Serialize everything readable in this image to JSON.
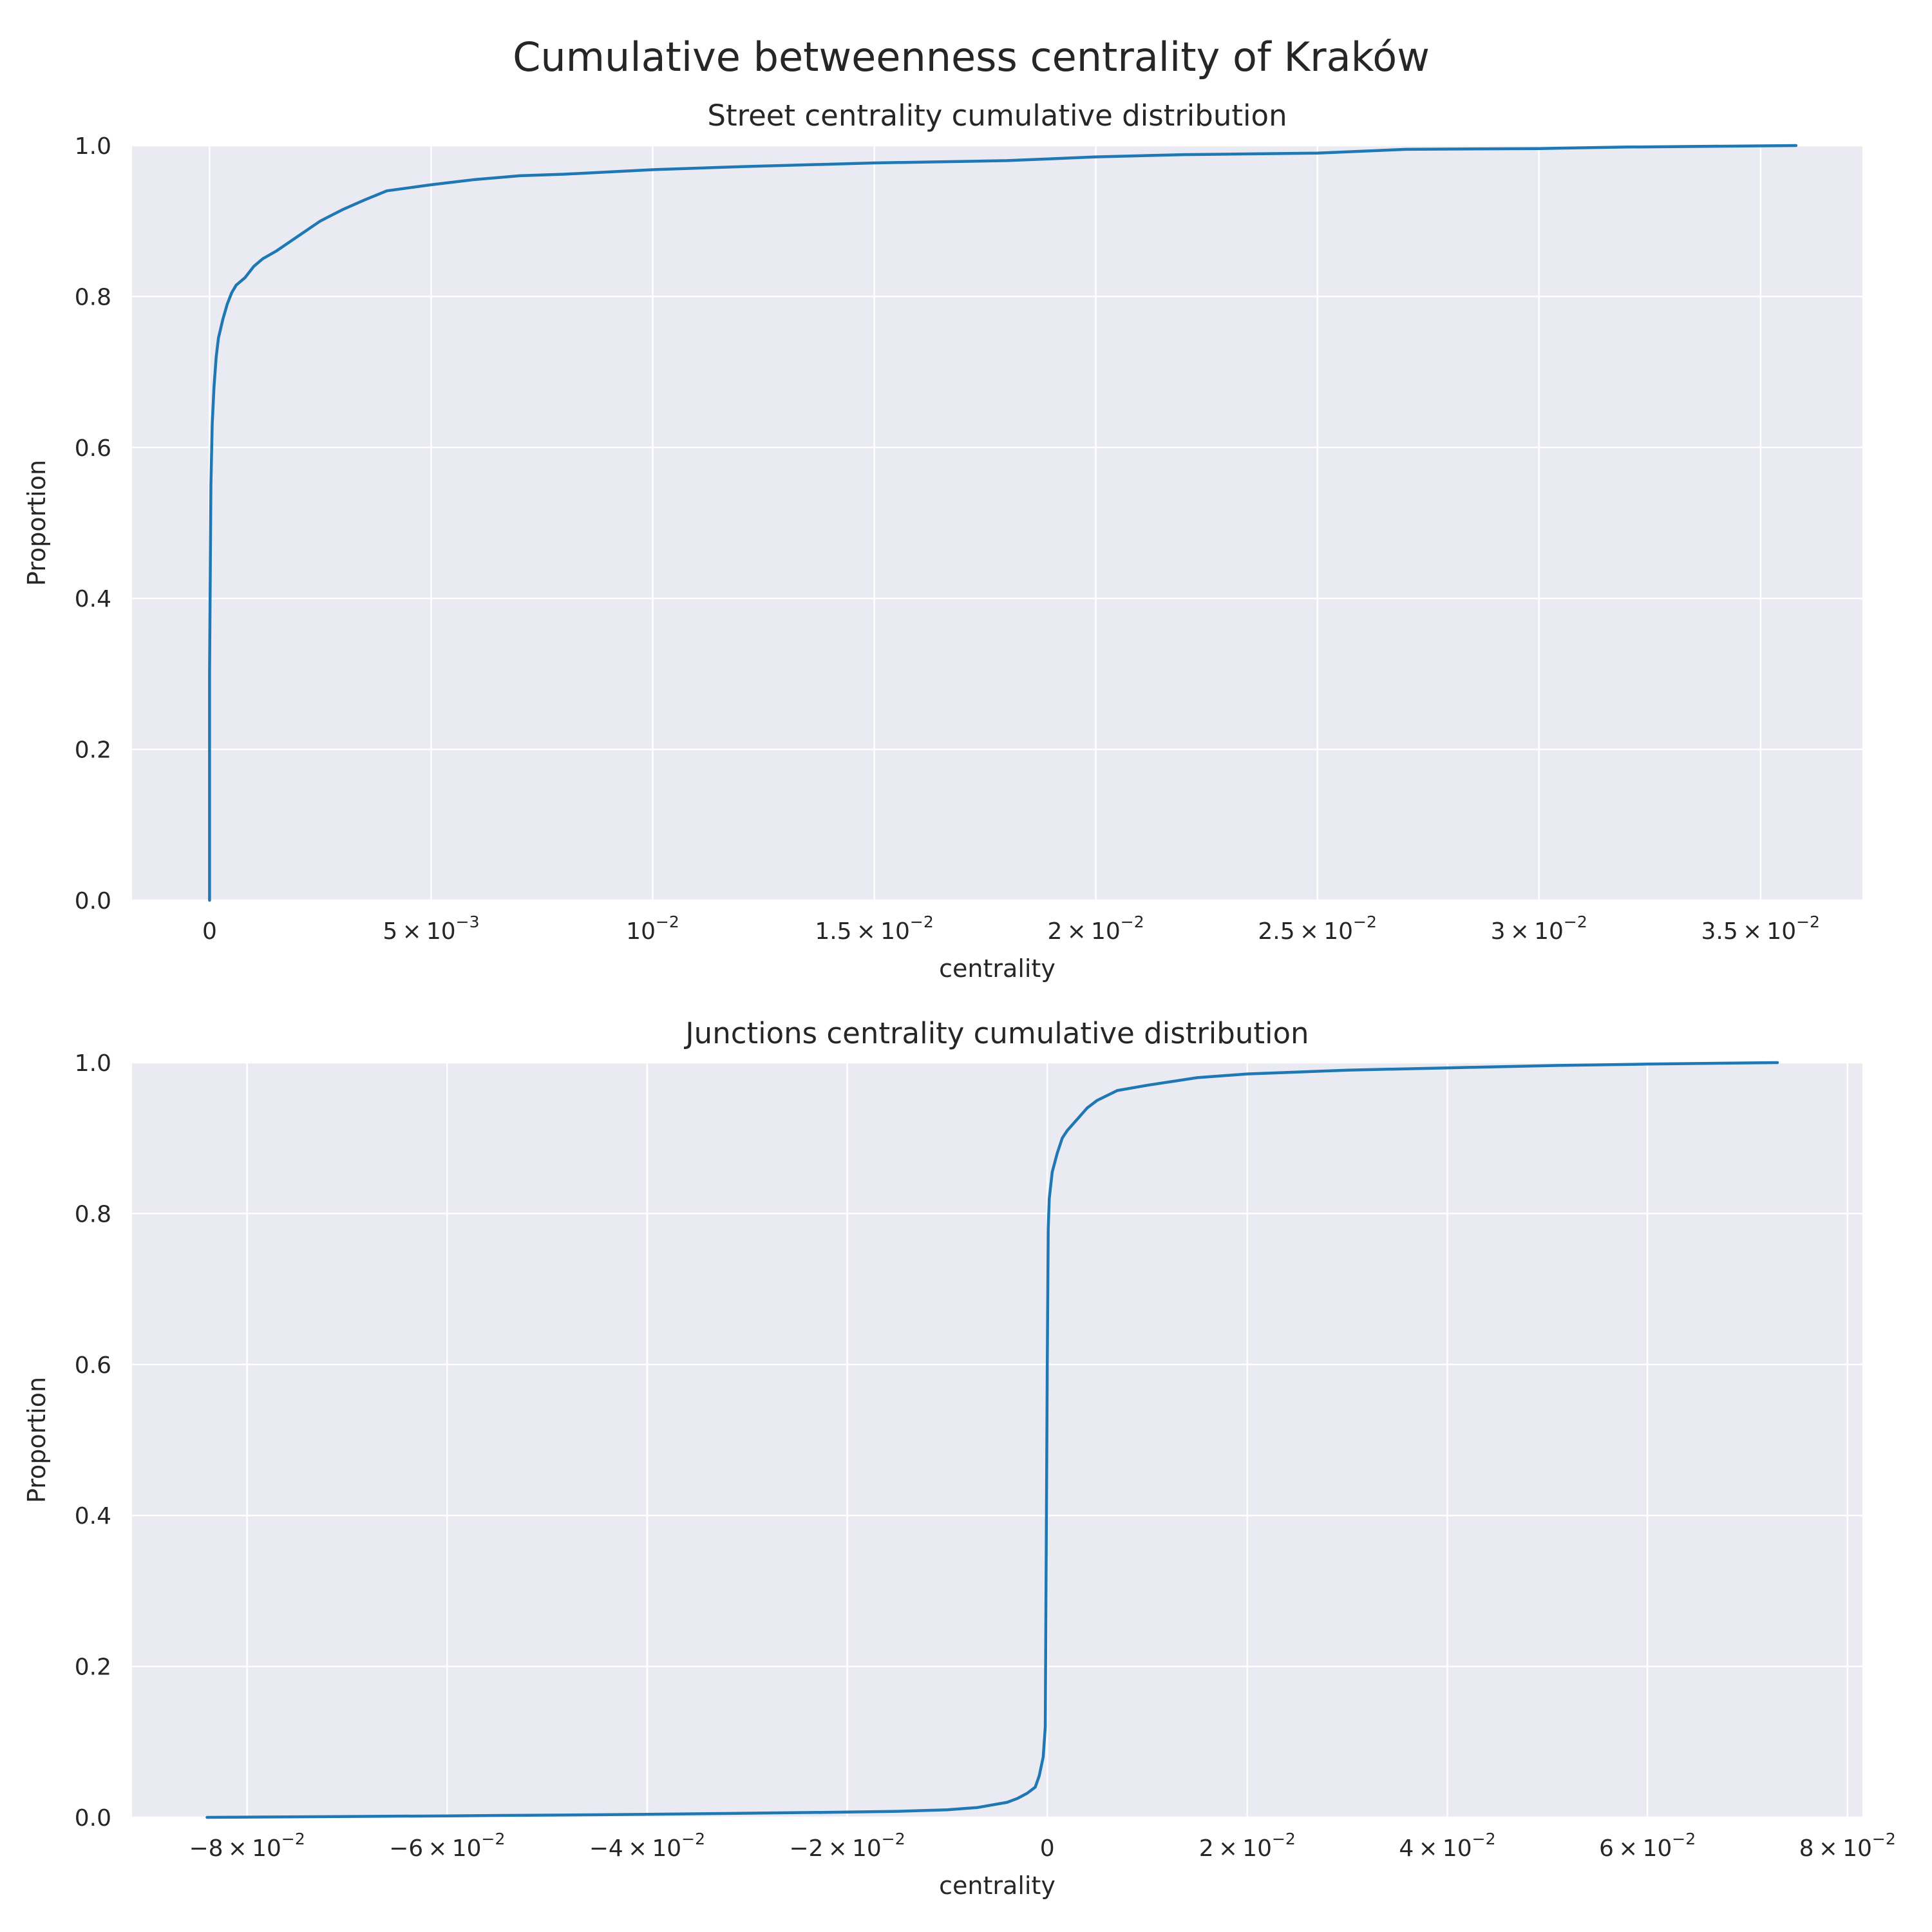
{
  "figure": {
    "title": "Cumulative betweenness centrality of Kraków",
    "colors": {
      "background": "#ffffff",
      "plot_bg": "#eaeaf2",
      "grid": "#ffffff",
      "line": "#1f77b4",
      "text": "#262626"
    }
  },
  "chart_data": [
    {
      "type": "line",
      "title": "Street centrality cumulative distribution",
      "xlabel": "centrality",
      "ylabel": "Proportion",
      "xlim": [
        -0.00175,
        0.0373
      ],
      "ylim": [
        0,
        1
      ],
      "grid": true,
      "xticks": [
        {
          "value": 0,
          "mantissa": "0",
          "exponent": ""
        },
        {
          "value": 0.005,
          "mantissa": "5",
          "exponent": "−3"
        },
        {
          "value": 0.01,
          "mantissa": "",
          "exponent": "−2"
        },
        {
          "value": 0.015,
          "mantissa": "1.5",
          "exponent": "−2"
        },
        {
          "value": 0.02,
          "mantissa": "2",
          "exponent": "−2"
        },
        {
          "value": 0.025,
          "mantissa": "2.5",
          "exponent": "−2"
        },
        {
          "value": 0.03,
          "mantissa": "3",
          "exponent": "−2"
        },
        {
          "value": 0.035,
          "mantissa": "3.5",
          "exponent": "−2"
        }
      ],
      "yticks": [
        "0.0",
        "0.2",
        "0.4",
        "0.6",
        "0.8",
        "1.0"
      ],
      "series": [
        {
          "x": [
            0,
            0,
            3e-05,
            6e-05,
            0.0001,
            0.00015,
            0.0002,
            0.0003,
            0.0004,
            0.0005,
            0.0006,
            0.0008,
            0.001,
            0.0012,
            0.0015,
            0.002,
            0.0025,
            0.003,
            0.0035,
            0.004,
            0.005,
            0.006,
            0.007,
            0.008,
            0.01,
            0.012,
            0.015,
            0.018,
            0.02,
            0.022,
            0.025,
            0.027,
            0.03,
            0.032,
            0.0358
          ],
          "y": [
            0,
            0.3,
            0.55,
            0.63,
            0.68,
            0.72,
            0.745,
            0.77,
            0.79,
            0.805,
            0.815,
            0.825,
            0.84,
            0.85,
            0.86,
            0.88,
            0.9,
            0.915,
            0.928,
            0.94,
            0.948,
            0.955,
            0.96,
            0.962,
            0.968,
            0.972,
            0.977,
            0.98,
            0.985,
            0.988,
            0.99,
            0.995,
            0.996,
            0.998,
            1.0
          ]
        }
      ]
    },
    {
      "type": "line",
      "title": "Junctions centrality cumulative distribution",
      "xlabel": "centrality",
      "ylabel": "Proportion",
      "xlim": [
        -0.0915,
        0.0815
      ],
      "ylim": [
        0,
        1
      ],
      "grid": true,
      "xticks": [
        {
          "value": -0.08,
          "mantissa": "−8",
          "exponent": "−2"
        },
        {
          "value": -0.06,
          "mantissa": "−6",
          "exponent": "−2"
        },
        {
          "value": -0.04,
          "mantissa": "−4",
          "exponent": "−2"
        },
        {
          "value": -0.02,
          "mantissa": "−2",
          "exponent": "−2"
        },
        {
          "value": 0,
          "mantissa": "0",
          "exponent": ""
        },
        {
          "value": 0.02,
          "mantissa": "2",
          "exponent": "−2"
        },
        {
          "value": 0.04,
          "mantissa": "4",
          "exponent": "−2"
        },
        {
          "value": 0.06,
          "mantissa": "6",
          "exponent": "−2"
        },
        {
          "value": 0.08,
          "mantissa": "8",
          "exponent": "−2"
        }
      ],
      "yticks": [
        "0.0",
        "0.2",
        "0.4",
        "0.6",
        "0.8",
        "1.0"
      ],
      "series": [
        {
          "x": [
            -0.084,
            -0.06,
            -0.04,
            -0.02,
            -0.015,
            -0.01,
            -0.007,
            -0.004,
            -0.003,
            -0.002,
            -0.0012,
            -0.0008,
            -0.0004,
            -0.0002,
            0,
            0.0001,
            0.0002,
            0.0005,
            0.001,
            0.0015,
            0.002,
            0.003,
            0.004,
            0.005,
            0.007,
            0.01,
            0.015,
            0.02,
            0.03,
            0.04,
            0.05,
            0.06,
            0.073
          ],
          "y": [
            0,
            0.002,
            0.004,
            0.007,
            0.008,
            0.01,
            0.013,
            0.02,
            0.025,
            0.032,
            0.04,
            0.055,
            0.08,
            0.12,
            0.6,
            0.78,
            0.82,
            0.855,
            0.88,
            0.9,
            0.91,
            0.925,
            0.94,
            0.95,
            0.963,
            0.97,
            0.98,
            0.985,
            0.99,
            0.993,
            0.996,
            0.998,
            1.0
          ]
        }
      ]
    }
  ]
}
